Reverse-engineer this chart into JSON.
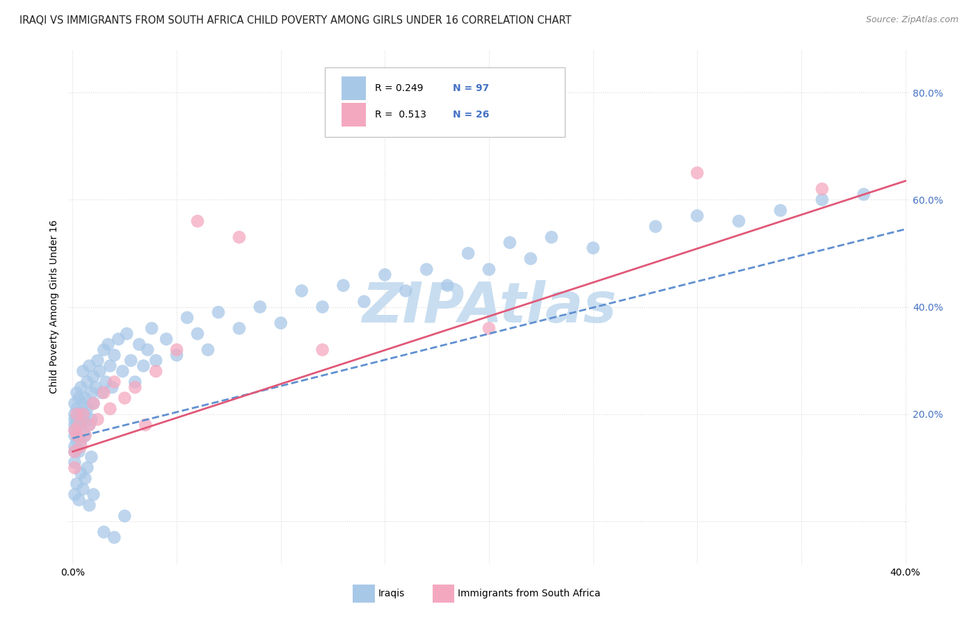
{
  "title": "IRAQI VS IMMIGRANTS FROM SOUTH AFRICA CHILD POVERTY AMONG GIRLS UNDER 16 CORRELATION CHART",
  "source": "Source: ZipAtlas.com",
  "ylabel": "Child Poverty Among Girls Under 16",
  "xlim": [
    -0.002,
    0.402
  ],
  "ylim": [
    -0.08,
    0.88
  ],
  "xtick_positions": [
    0.0,
    0.05,
    0.1,
    0.15,
    0.2,
    0.25,
    0.3,
    0.35,
    0.4
  ],
  "xticklabels": [
    "0.0%",
    "",
    "",
    "",
    "",
    "",
    "",
    "",
    "40.0%"
  ],
  "ytick_positions": [
    0.0,
    0.2,
    0.4,
    0.6,
    0.8
  ],
  "yticklabels_right": [
    "",
    "20.0%",
    "40.0%",
    "60.0%",
    "80.0%"
  ],
  "color_iraqi": "#a8c8e8",
  "color_sa": "#f4a8c0",
  "line_color_iraqi": "#6090d0",
  "line_color_sa": "#e05878",
  "watermark": "ZIPAtlas",
  "watermark_color": "#c8ddf0",
  "grid_color": "#d8d8d8",
  "title_color": "#222222",
  "source_color": "#888888",
  "tick_color": "#4472c4",
  "iraqi_x": [
    0.001,
    0.001,
    0.001,
    0.001,
    0.001,
    0.001,
    0.001,
    0.001,
    0.001,
    0.002,
    0.002,
    0.002,
    0.002,
    0.002,
    0.003,
    0.003,
    0.003,
    0.003,
    0.004,
    0.004,
    0.004,
    0.005,
    0.005,
    0.005,
    0.006,
    0.006,
    0.006,
    0.007,
    0.007,
    0.008,
    0.008,
    0.009,
    0.009,
    0.01,
    0.01,
    0.011,
    0.012,
    0.013,
    0.014,
    0.015,
    0.016,
    0.017,
    0.018,
    0.019,
    0.02,
    0.022,
    0.024,
    0.026,
    0.028,
    0.03,
    0.032,
    0.034,
    0.036,
    0.038,
    0.04,
    0.045,
    0.05,
    0.055,
    0.06,
    0.065,
    0.07,
    0.08,
    0.09,
    0.1,
    0.11,
    0.12,
    0.13,
    0.14,
    0.15,
    0.16,
    0.17,
    0.18,
    0.19,
    0.2,
    0.21,
    0.22,
    0.23,
    0.25,
    0.28,
    0.3,
    0.32,
    0.34,
    0.36,
    0.38,
    0.001,
    0.002,
    0.003,
    0.004,
    0.005,
    0.006,
    0.007,
    0.008,
    0.009,
    0.01,
    0.015,
    0.02,
    0.025
  ],
  "iraqi_y": [
    0.18,
    0.16,
    0.22,
    0.13,
    0.2,
    0.14,
    0.19,
    0.11,
    0.17,
    0.21,
    0.18,
    0.15,
    0.24,
    0.19,
    0.16,
    0.23,
    0.2,
    0.13,
    0.25,
    0.18,
    0.15,
    0.22,
    0.19,
    0.28,
    0.16,
    0.23,
    0.2,
    0.26,
    0.21,
    0.18,
    0.29,
    0.24,
    0.19,
    0.27,
    0.22,
    0.25,
    0.3,
    0.28,
    0.24,
    0.32,
    0.26,
    0.33,
    0.29,
    0.25,
    0.31,
    0.34,
    0.28,
    0.35,
    0.3,
    0.26,
    0.33,
    0.29,
    0.32,
    0.36,
    0.3,
    0.34,
    0.31,
    0.38,
    0.35,
    0.32,
    0.39,
    0.36,
    0.4,
    0.37,
    0.43,
    0.4,
    0.44,
    0.41,
    0.46,
    0.43,
    0.47,
    0.44,
    0.5,
    0.47,
    0.52,
    0.49,
    0.53,
    0.51,
    0.55,
    0.57,
    0.56,
    0.58,
    0.6,
    0.61,
    0.05,
    0.07,
    0.04,
    0.09,
    0.06,
    0.08,
    0.1,
    0.03,
    0.12,
    0.05,
    -0.02,
    -0.03,
    0.01
  ],
  "sa_x": [
    0.001,
    0.001,
    0.001,
    0.002,
    0.002,
    0.003,
    0.004,
    0.005,
    0.006,
    0.008,
    0.01,
    0.012,
    0.015,
    0.018,
    0.02,
    0.025,
    0.03,
    0.035,
    0.04,
    0.05,
    0.06,
    0.08,
    0.12,
    0.2,
    0.3,
    0.36
  ],
  "sa_y": [
    0.17,
    0.13,
    0.1,
    0.2,
    0.16,
    0.18,
    0.14,
    0.2,
    0.16,
    0.18,
    0.22,
    0.19,
    0.24,
    0.21,
    0.26,
    0.23,
    0.25,
    0.18,
    0.28,
    0.32,
    0.56,
    0.53,
    0.32,
    0.36,
    0.65,
    0.62
  ],
  "line_iraqi_x0": 0.0,
  "line_iraqi_y0": 0.155,
  "line_iraqi_x1": 0.4,
  "line_iraqi_y1": 0.545,
  "line_sa_x0": 0.0,
  "line_sa_y0": 0.13,
  "line_sa_x1": 0.4,
  "line_sa_y1": 0.635
}
